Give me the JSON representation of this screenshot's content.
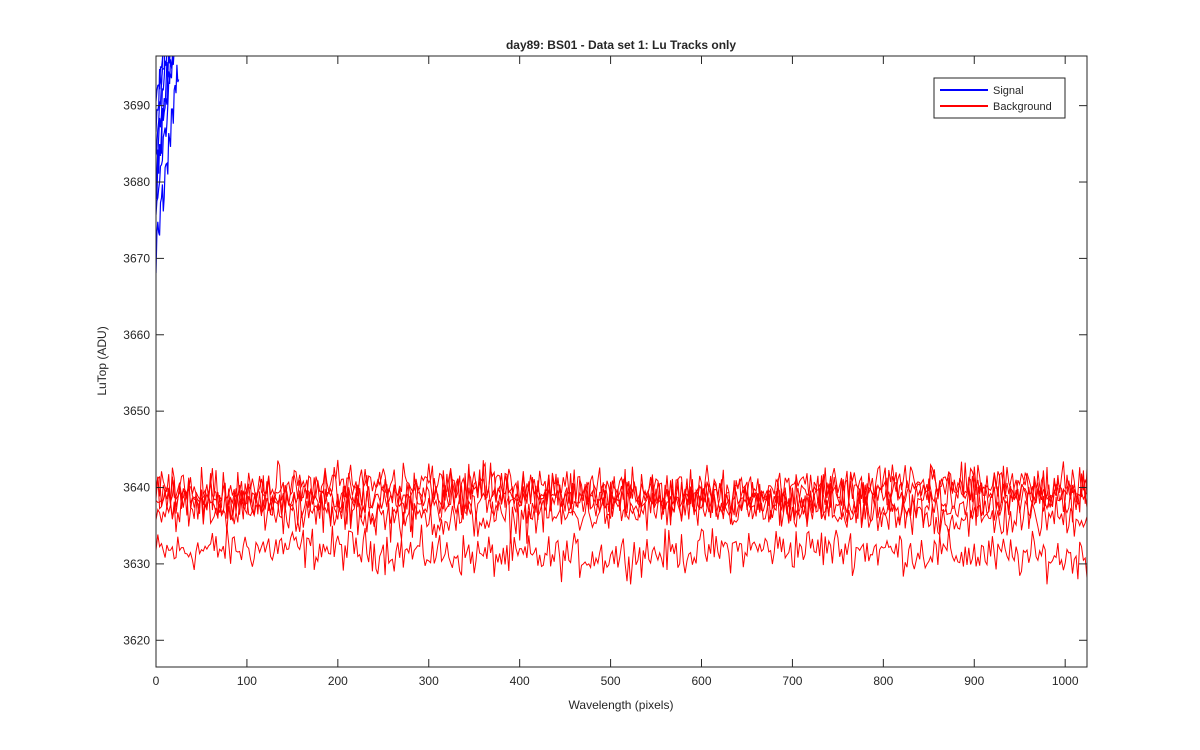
{
  "chart_data": {
    "type": "line",
    "title": "day89: BS01 - Data set 1: Lu Tracks only",
    "xlabel": "Wavelength (pixels)",
    "ylabel": "LuTop (ADU)",
    "xlim": [
      0,
      1024
    ],
    "ylim": [
      3616.5,
      3696.5
    ],
    "x_ticks": [
      0,
      100,
      200,
      300,
      400,
      500,
      600,
      700,
      800,
      900,
      1000
    ],
    "y_ticks": [
      3620,
      3630,
      3640,
      3650,
      3660,
      3670,
      3680,
      3690
    ],
    "grid": false,
    "legend_position": "top-right",
    "series": [
      {
        "name": "Signal",
        "color": "#0000ff",
        "approx_start_values": [
          3670.5,
          3675,
          3678,
          3680,
          3682,
          3685,
          3689,
          3690
        ],
        "approx_rise_per_pixel": 1.1,
        "points_visible_until_x": 25
      },
      {
        "name": "Background",
        "color": "#ff0000",
        "line_count": 6,
        "approx_mean_values": [
          3631.5,
          3636.5,
          3638,
          3639,
          3639.5,
          3640
        ],
        "approx_noise_amplitude": 2.5,
        "x_step": 2
      }
    ]
  }
}
